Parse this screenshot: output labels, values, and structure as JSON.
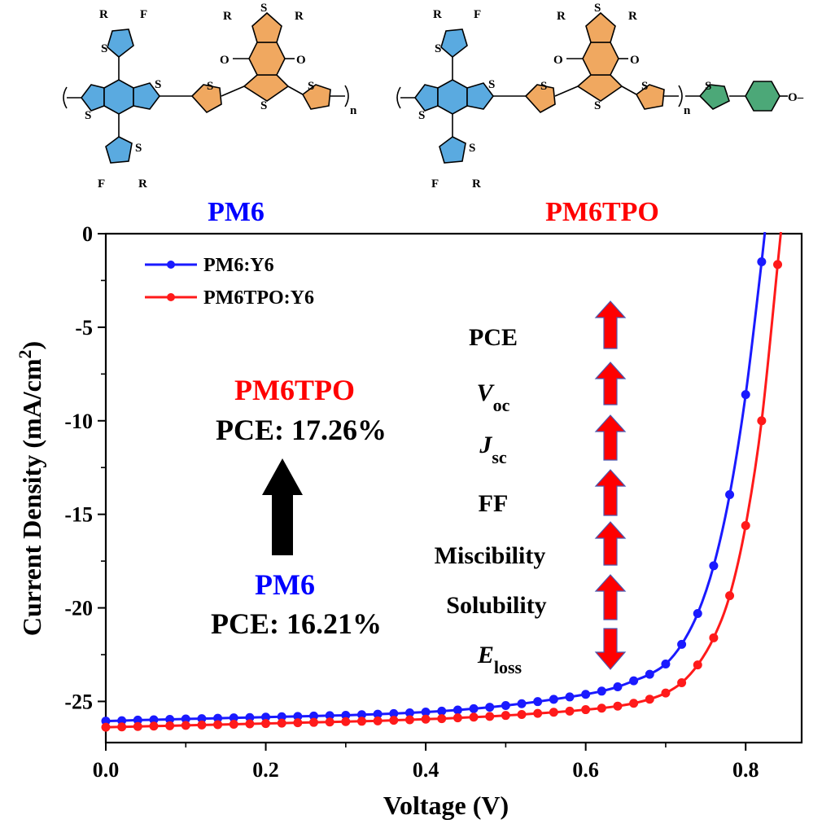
{
  "structures": {
    "pm6": {
      "atom_labels": {
        "r": "R",
        "f": "F",
        "s": "S",
        "o": "O",
        "n": "n"
      }
    },
    "pm6tpo": {
      "atom_labels": {
        "r": "R",
        "f": "F",
        "s": "S",
        "o": "O",
        "n": "n",
        "methoxy": "O–"
      }
    }
  },
  "labels": {
    "pm6_title": "PM6",
    "pm6tpo_title": "PM6TPO",
    "pm6tpo_annot_name": "PM6TPO",
    "pm6tpo_annot_pce": "PCE: 17.26%",
    "pm6_annot_name": "PM6",
    "pm6_annot_pce": "PCE: 16.21%",
    "param_pce": "PCE",
    "param_voc_main": "V",
    "param_voc_sub": "oc",
    "param_jsc_main": "J",
    "param_jsc_sub": "sc",
    "param_ff": "FF",
    "param_miscibility": "Miscibility",
    "param_solubility": "Solubility",
    "param_eloss_main": "E",
    "param_eloss_sub": "loss"
  },
  "colors": {
    "blue": "#0000ff",
    "red": "#ff0000",
    "series_blue": "#1a1aff",
    "series_red": "#ff1a1a",
    "ring_blue": "#5aaae0",
    "ring_orange": "#f0a860",
    "ring_green": "#4ca878",
    "arrow_black": "#000000"
  },
  "chart_data": {
    "type": "line",
    "title": "",
    "xlabel": "Voltage (V)",
    "ylabel": "Current Density (mA/cm",
    "ylabel_sup": "2",
    "ylabel_close": ")",
    "xlim": [
      0.0,
      0.87
    ],
    "ylim": [
      -27.2,
      0
    ],
    "x_ticks": [
      0.0,
      0.2,
      0.4,
      0.6,
      0.8
    ],
    "x_tick_labels": [
      "0.0",
      "0.2",
      "0.4",
      "0.6",
      "0.8"
    ],
    "y_ticks": [
      0,
      -5,
      -10,
      -15,
      -20,
      -25
    ],
    "y_tick_labels": [
      "0",
      "-5",
      "-10",
      "-15",
      "-20",
      "-25"
    ],
    "legend_position": "top-left",
    "series": [
      {
        "name": "PM6:Y6",
        "color": "blue",
        "x": [
          0.0,
          0.02,
          0.04,
          0.06,
          0.08,
          0.1,
          0.12,
          0.14,
          0.16,
          0.18,
          0.2,
          0.22,
          0.24,
          0.26,
          0.28,
          0.3,
          0.32,
          0.34,
          0.36,
          0.38,
          0.4,
          0.42,
          0.44,
          0.46,
          0.48,
          0.5,
          0.52,
          0.54,
          0.56,
          0.58,
          0.6,
          0.62,
          0.64,
          0.66,
          0.68,
          0.7,
          0.72,
          0.74,
          0.76,
          0.78,
          0.8,
          0.82
        ],
        "y": [
          -26.05,
          -26.03,
          -26.0,
          -25.98,
          -25.96,
          -25.94,
          -25.92,
          -25.9,
          -25.88,
          -25.86,
          -25.84,
          -25.82,
          -25.8,
          -25.78,
          -25.76,
          -25.74,
          -25.71,
          -25.68,
          -25.65,
          -25.61,
          -25.57,
          -25.52,
          -25.46,
          -25.39,
          -25.31,
          -25.22,
          -25.12,
          -25.01,
          -24.89,
          -24.76,
          -24.62,
          -24.45,
          -24.22,
          -23.9,
          -23.55,
          -23.0,
          -21.95,
          -20.3,
          -17.75,
          -13.95,
          -8.6,
          -1.5
        ]
      },
      {
        "name": "PM6TPO:Y6",
        "color": "red",
        "x": [
          0.0,
          0.02,
          0.04,
          0.06,
          0.08,
          0.1,
          0.12,
          0.14,
          0.16,
          0.18,
          0.2,
          0.22,
          0.24,
          0.26,
          0.28,
          0.3,
          0.32,
          0.34,
          0.36,
          0.38,
          0.4,
          0.42,
          0.44,
          0.46,
          0.48,
          0.5,
          0.52,
          0.54,
          0.56,
          0.58,
          0.6,
          0.62,
          0.64,
          0.66,
          0.68,
          0.7,
          0.72,
          0.74,
          0.76,
          0.78,
          0.8,
          0.82,
          0.84
        ],
        "y": [
          -26.38,
          -26.36,
          -26.34,
          -26.32,
          -26.3,
          -26.28,
          -26.26,
          -26.24,
          -26.22,
          -26.2,
          -26.18,
          -26.16,
          -26.14,
          -26.12,
          -26.1,
          -26.08,
          -26.06,
          -26.04,
          -26.01,
          -25.98,
          -25.95,
          -25.92,
          -25.88,
          -25.84,
          -25.8,
          -25.75,
          -25.7,
          -25.64,
          -25.58,
          -25.52,
          -25.44,
          -25.36,
          -25.25,
          -25.1,
          -24.88,
          -24.55,
          -24.0,
          -23.05,
          -21.6,
          -19.35,
          -15.6,
          -10.0,
          -1.65
        ]
      }
    ]
  }
}
